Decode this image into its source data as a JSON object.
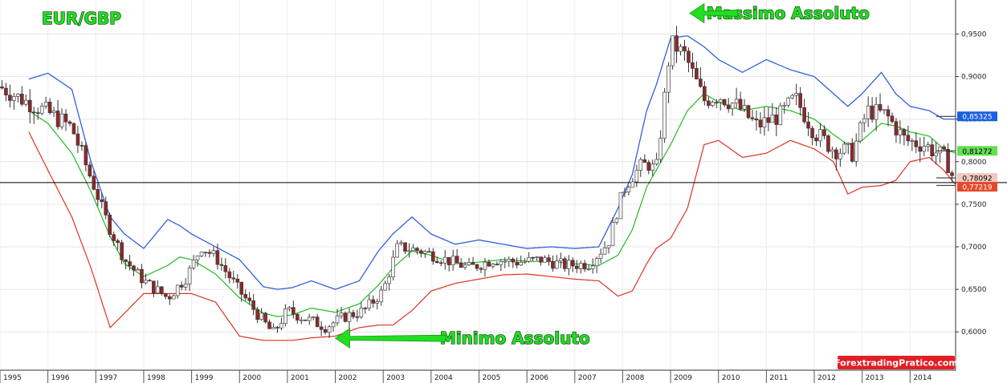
{
  "chart_data": {
    "type": "candlestick",
    "title": "EUR/GBP",
    "colors": {
      "up": "#f2f2f2",
      "down": "#8b2a2a",
      "outline": "#333333",
      "upper_band": "#2255dd",
      "middle_band": "#22bb22",
      "lower_band": "#dd3322",
      "horizontal_line": "#000000",
      "annotation": "#22dd22",
      "watermark_bg": "#e31e24"
    },
    "ylim": [
      0.555,
      0.99
    ],
    "xlim": [
      1995.0,
      2014.95
    ],
    "y_ticks": [
      "0,6000",
      "0,6500",
      "0,7000",
      "0,7500",
      "0,8000",
      "0,8500",
      "0,9000",
      "0,9500"
    ],
    "x_ticks": [
      "1995",
      "1996",
      "1997",
      "1998",
      "1999",
      "2000",
      "2001",
      "2002",
      "2003",
      "2004",
      "2005",
      "2006",
      "2007",
      "2008",
      "2009",
      "2010",
      "2011",
      "2012",
      "2013",
      "2014"
    ],
    "horizontal_line": 0.7755,
    "price_tags": [
      {
        "label": "0,85325",
        "value": 0.85325,
        "color": "#1a5fe0",
        "text_color": "#ffffff"
      },
      {
        "label": "0,81272",
        "value": 0.81272,
        "color": "#66dd55",
        "text_color": "#000000"
      },
      {
        "label": "0,78092",
        "value": 0.78092,
        "color": "#f2c8bf",
        "text_color": "#000000"
      },
      {
        "label": "0,77219",
        "value": 0.77219,
        "color": "#e34a2a",
        "text_color": "#ffffff"
      }
    ],
    "annotations": [
      {
        "text": "Massimo Assoluto",
        "x": 2011.45,
        "y": 0.9745,
        "arrow_from_x": 2010.4,
        "arrow_to_x": 2009.4
      },
      {
        "text": "Minimo Assoluto",
        "x": 2005.75,
        "y": 0.5925,
        "arrow_from_x": 2004.3,
        "arrow_to_x": 2002.0
      }
    ],
    "watermark": "ForextradingPratico.com",
    "series": [
      {
        "name": "",
        "kind": "close",
        "x": [
          1995.0,
          1995.5,
          1996.0,
          1996.5,
          1996.9,
          1997.3,
          1997.6,
          1998.0,
          1998.5,
          1998.9,
          1999.2,
          1999.5,
          2000.0,
          2000.5,
          2000.7,
          2001.0,
          2001.4,
          2001.8,
          2002.2,
          2002.6,
          2003.0,
          2003.3,
          2003.8,
          2004.3,
          2004.8,
          2005.3,
          2005.8,
          2006.3,
          2006.8,
          2007.3,
          2007.7,
          2008.0,
          2008.4,
          2008.7,
          2008.85,
          2009.0,
          2009.3,
          2009.7,
          2010.0,
          2010.4,
          2010.8,
          2011.3,
          2011.6,
          2012.0,
          2012.4,
          2012.8,
          2013.1,
          2013.5,
          2013.9,
          2014.3,
          2014.7,
          2014.9
        ],
        "y": [
          0.888,
          0.872,
          0.858,
          0.84,
          0.78,
          0.72,
          0.685,
          0.66,
          0.64,
          0.665,
          0.7,
          0.688,
          0.648,
          0.612,
          0.598,
          0.625,
          0.615,
          0.606,
          0.618,
          0.625,
          0.648,
          0.7,
          0.695,
          0.685,
          0.675,
          0.685,
          0.682,
          0.685,
          0.678,
          0.68,
          0.705,
          0.765,
          0.798,
          0.792,
          0.862,
          0.94,
          0.925,
          0.872,
          0.878,
          0.865,
          0.842,
          0.855,
          0.875,
          0.835,
          0.815,
          0.81,
          0.86,
          0.855,
          0.825,
          0.82,
          0.805,
          0.781
        ]
      },
      {
        "name": "",
        "kind": "upper_band",
        "x": [
          1995.6,
          1996.0,
          1996.5,
          1996.9,
          1997.3,
          1997.6,
          1998.0,
          1998.5,
          1998.75,
          1999.0,
          1999.5,
          2000.0,
          2000.5,
          2000.8,
          2001.1,
          2001.5,
          2002.0,
          2002.5,
          2002.9,
          2003.2,
          2003.6,
          2004.0,
          2004.5,
          2005.0,
          2005.5,
          2006.0,
          2006.5,
          2007.0,
          2007.5,
          2007.9,
          2008.2,
          2008.5,
          2008.7,
          2009.0,
          2009.35,
          2009.7,
          2010.0,
          2010.5,
          2011.0,
          2011.5,
          2012.0,
          2012.4,
          2012.7,
          2013.0,
          2013.4,
          2013.7,
          2014.0,
          2014.4,
          2014.7,
          2014.95
        ],
        "y": [
          0.897,
          0.904,
          0.885,
          0.8,
          0.735,
          0.715,
          0.698,
          0.732,
          0.725,
          0.715,
          0.7,
          0.685,
          0.653,
          0.65,
          0.652,
          0.66,
          0.65,
          0.66,
          0.695,
          0.715,
          0.735,
          0.715,
          0.703,
          0.708,
          0.703,
          0.698,
          0.7,
          0.698,
          0.7,
          0.745,
          0.785,
          0.86,
          0.89,
          0.945,
          0.948,
          0.935,
          0.92,
          0.905,
          0.92,
          0.908,
          0.9,
          0.88,
          0.865,
          0.88,
          0.905,
          0.88,
          0.865,
          0.86,
          0.85,
          0.85
        ]
      },
      {
        "name": "",
        "kind": "middle_band",
        "x": [
          1995.6,
          1996.0,
          1996.5,
          1996.9,
          1997.3,
          1997.6,
          1998.0,
          1998.5,
          1998.75,
          1999.0,
          1999.5,
          2000.0,
          2000.5,
          2000.8,
          2001.1,
          2001.5,
          2002.0,
          2002.5,
          2002.9,
          2003.2,
          2003.6,
          2004.0,
          2004.5,
          2005.0,
          2005.5,
          2006.0,
          2006.5,
          2007.0,
          2007.5,
          2007.9,
          2008.2,
          2008.5,
          2008.7,
          2009.0,
          2009.35,
          2009.7,
          2010.0,
          2010.5,
          2011.0,
          2011.5,
          2012.0,
          2012.4,
          2012.7,
          2013.0,
          2013.4,
          2013.7,
          2014.0,
          2014.4,
          2014.7,
          2014.95
        ],
        "y": [
          0.86,
          0.845,
          0.81,
          0.765,
          0.712,
          0.68,
          0.665,
          0.678,
          0.688,
          0.685,
          0.668,
          0.64,
          0.622,
          0.618,
          0.62,
          0.628,
          0.623,
          0.633,
          0.655,
          0.675,
          0.695,
          0.69,
          0.68,
          0.682,
          0.685,
          0.683,
          0.683,
          0.68,
          0.678,
          0.69,
          0.72,
          0.77,
          0.79,
          0.82,
          0.86,
          0.88,
          0.87,
          0.86,
          0.865,
          0.86,
          0.85,
          0.832,
          0.82,
          0.825,
          0.845,
          0.842,
          0.835,
          0.83,
          0.815,
          0.81
        ]
      },
      {
        "name": "",
        "kind": "lower_band",
        "x": [
          1995.6,
          1996.0,
          1996.5,
          1996.9,
          1997.3,
          1997.6,
          1998.0,
          1998.5,
          1998.75,
          1999.0,
          1999.5,
          2000.0,
          2000.5,
          2000.8,
          2001.1,
          2001.5,
          2002.0,
          2002.5,
          2002.9,
          2003.2,
          2003.6,
          2004.0,
          2004.5,
          2005.0,
          2005.5,
          2006.0,
          2006.5,
          2007.0,
          2007.5,
          2007.9,
          2008.2,
          2008.5,
          2008.7,
          2009.0,
          2009.35,
          2009.7,
          2010.0,
          2010.5,
          2011.0,
          2011.5,
          2012.0,
          2012.4,
          2012.7,
          2013.0,
          2013.4,
          2013.7,
          2014.0,
          2014.4,
          2014.7,
          2014.95
        ],
        "y": [
          0.835,
          0.79,
          0.735,
          0.675,
          0.605,
          0.622,
          0.645,
          0.645,
          0.645,
          0.645,
          0.635,
          0.595,
          0.59,
          0.59,
          0.59,
          0.593,
          0.595,
          0.605,
          0.608,
          0.608,
          0.625,
          0.648,
          0.657,
          0.662,
          0.667,
          0.668,
          0.665,
          0.662,
          0.66,
          0.642,
          0.648,
          0.68,
          0.698,
          0.71,
          0.745,
          0.82,
          0.825,
          0.805,
          0.81,
          0.825,
          0.815,
          0.8,
          0.762,
          0.77,
          0.772,
          0.778,
          0.8,
          0.805,
          0.79,
          0.773
        ]
      }
    ]
  }
}
